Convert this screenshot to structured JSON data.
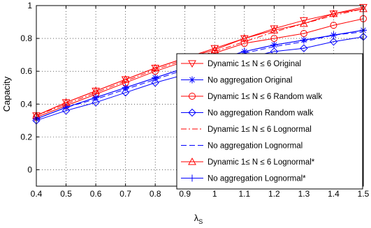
{
  "chart_data": {
    "type": "line",
    "title": "",
    "xlabel": "λ",
    "xlabel_sub": "S",
    "ylabel": "Capacity",
    "xlim": [
      0.4,
      1.5
    ],
    "ylim": [
      -0.1,
      1.0
    ],
    "x_ticks": [
      "0.4",
      "0.5",
      "0.6",
      "0.7",
      "0.8",
      "0.9",
      "1",
      "1.1",
      "1.2",
      "1.3",
      "1.4",
      "1.5"
    ],
    "y_ticks": [
      "0",
      "0.2",
      "0.4",
      "0.6",
      "0.8",
      "1"
    ],
    "grid": true,
    "legend_position": "bottom-right",
    "x": [
      0.4,
      0.5,
      0.6,
      0.7,
      0.8,
      0.9,
      1.0,
      1.1,
      1.2,
      1.3,
      1.4,
      1.5
    ],
    "series": [
      {
        "name": "Dynamic 1≤ N ≤ 6 Original",
        "color": "#ff0000",
        "dash": "solid",
        "marker": "triangle-down",
        "values": [
          0.33,
          0.41,
          0.48,
          0.55,
          0.62,
          0.68,
          0.74,
          0.8,
          0.86,
          0.91,
          0.95,
          0.99
        ]
      },
      {
        "name": "No aggregation  Original",
        "color": "#0000ff",
        "dash": "solid",
        "marker": "asterisk",
        "values": [
          0.31,
          0.38,
          0.44,
          0.5,
          0.56,
          0.62,
          0.67,
          0.72,
          0.76,
          0.79,
          0.82,
          0.85
        ]
      },
      {
        "name": "Dynamic 1≤ N ≤ 6 Random walk",
        "color": "#ff0000",
        "dash": "solid",
        "marker": "circle",
        "values": [
          0.32,
          0.39,
          0.46,
          0.53,
          0.6,
          0.66,
          0.71,
          0.77,
          0.8,
          0.83,
          0.88,
          0.92
        ]
      },
      {
        "name": "No aggregation  Random walk",
        "color": "#0000ff",
        "dash": "solid",
        "marker": "diamond",
        "values": [
          0.3,
          0.36,
          0.41,
          0.47,
          0.53,
          0.58,
          0.62,
          0.68,
          0.72,
          0.74,
          0.78,
          0.81
        ]
      },
      {
        "name": "Dynamic 1≤ N ≤ 6 Lognormal",
        "color": "#ff0000",
        "dash": "dashdot",
        "marker": "none",
        "values": [
          0.33,
          0.4,
          0.47,
          0.54,
          0.61,
          0.67,
          0.72,
          0.78,
          0.84,
          0.89,
          0.94,
          0.98
        ]
      },
      {
        "name": "No aggregation  Lognormal",
        "color": "#0000ff",
        "dash": "dashed",
        "marker": "none",
        "values": [
          0.31,
          0.38,
          0.43,
          0.49,
          0.55,
          0.61,
          0.66,
          0.71,
          0.75,
          0.78,
          0.82,
          0.84
        ]
      },
      {
        "name": "Dynamic 1≤ N ≤ 6 Lognormal*",
        "color": "#ff0000",
        "dash": "solid",
        "marker": "triangle-up",
        "values": [
          0.33,
          0.41,
          0.48,
          0.55,
          0.62,
          0.68,
          0.73,
          0.8,
          0.85,
          0.89,
          0.95,
          0.98
        ]
      },
      {
        "name": "No aggregation Lognormal*",
        "color": "#0000ff",
        "dash": "solid",
        "marker": "plus",
        "values": [
          0.31,
          0.38,
          0.44,
          0.5,
          0.56,
          0.62,
          0.67,
          0.72,
          0.76,
          0.79,
          0.82,
          0.85
        ]
      }
    ]
  }
}
